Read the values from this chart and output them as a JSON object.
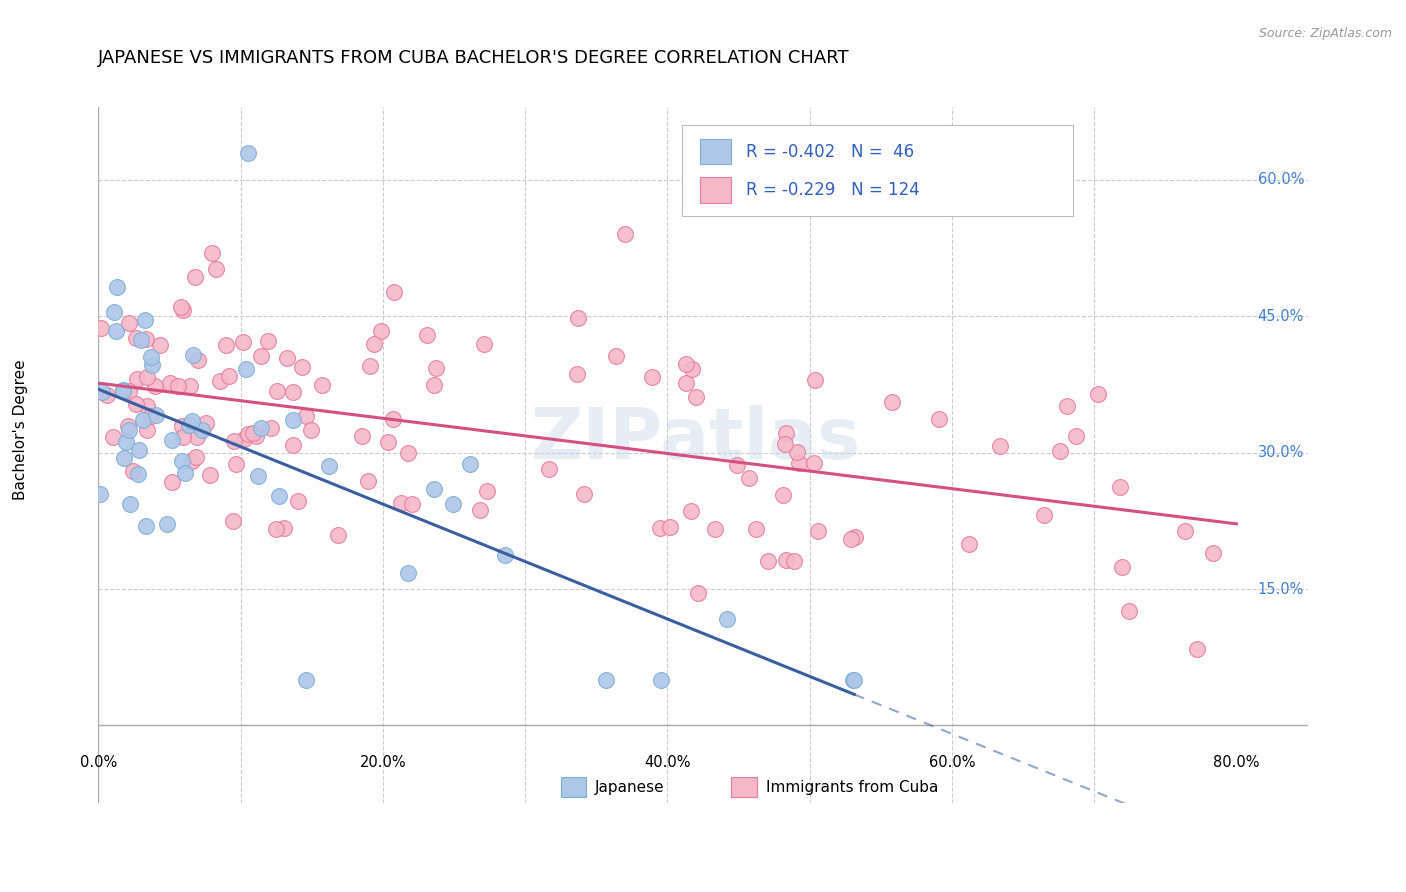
{
  "title": "JAPANESE VS IMMIGRANTS FROM CUBA BACHELOR'S DEGREE CORRELATION CHART",
  "source": "Source: ZipAtlas.com",
  "ylabel": "Bachelor's Degree",
  "color_japanese_fill": "#aec6e8",
  "color_japanese_edge": "#7bafd4",
  "color_cuba_fill": "#f4b8c8",
  "color_cuba_edge": "#e87aa0",
  "color_japanese_line": "#3a5fa0",
  "color_cuba_line": "#d45080",
  "color_legend_text": "#3060c0",
  "color_grid": "#cccccc",
  "color_right_labels": "#4080d0",
  "watermark_text": "ZIPatlas",
  "legend_text_1": "R = -0.402   N =  46",
  "legend_text_2": "R = -0.229   N = 124",
  "bottom_label_japanese": "Japanese",
  "bottom_label_cuba": "Immigrants from Cuba",
  "xlim": [
    0.0,
    0.8
  ],
  "ylim": [
    0.0,
    0.65
  ],
  "xtick_positions": [
    0.0,
    0.1,
    0.2,
    0.3,
    0.4,
    0.5,
    0.6,
    0.7,
    0.8
  ],
  "xtick_labels": [
    "0.0%",
    "",
    "20.0%",
    "",
    "40.0%",
    "",
    "60.0%",
    "",
    "80.0%"
  ],
  "ytick_positions": [
    0.15,
    0.3,
    0.45,
    0.6
  ],
  "ytick_labels": [
    "15.0%",
    "30.0%",
    "45.0%",
    "60.0%"
  ],
  "jap_seed": 10,
  "cuba_seed": 20
}
